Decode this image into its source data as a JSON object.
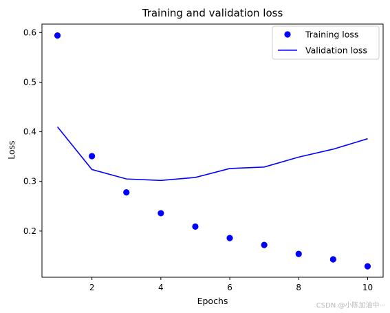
{
  "chart_data": {
    "type": "line",
    "title": "Training and validation loss",
    "xlabel": "Epochs",
    "ylabel": "Loss",
    "xlim": [
      0.55,
      10.45
    ],
    "ylim": [
      0.107,
      0.617
    ],
    "xticks": [
      2,
      4,
      6,
      8,
      10
    ],
    "yticks": [
      0.2,
      0.3,
      0.4,
      0.5,
      0.6
    ],
    "x": [
      1,
      2,
      3,
      4,
      5,
      6,
      7,
      8,
      9,
      10
    ],
    "series": [
      {
        "name": "Training loss",
        "style": "scatter",
        "color": "#0000ff",
        "values": [
          0.594,
          0.351,
          0.278,
          0.236,
          0.209,
          0.186,
          0.172,
          0.154,
          0.143,
          0.129
        ]
      },
      {
        "name": "Validation loss",
        "style": "line",
        "color": "#0000ff",
        "values": [
          0.41,
          0.324,
          0.305,
          0.302,
          0.308,
          0.326,
          0.329,
          0.349,
          0.365,
          0.386
        ]
      }
    ],
    "legend_position": "upper right",
    "grid": false
  },
  "watermark": "CSDN @小陈加油中···"
}
